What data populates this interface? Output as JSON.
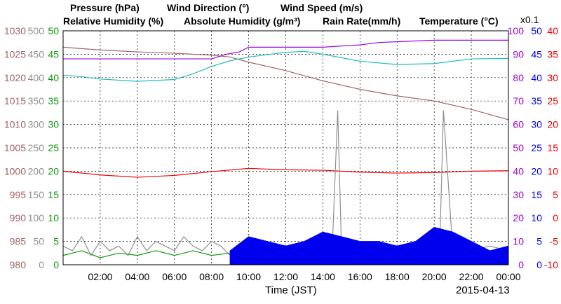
{
  "chart_data": {
    "type": "line",
    "date": "2015-04-13",
    "xlabel": "Time (JST)",
    "x_ticks": [
      "02:00",
      "04:00",
      "06:00",
      "08:00",
      "10:00",
      "12:00",
      "14:00",
      "16:00",
      "18:00",
      "20:00",
      "22:00",
      "00:00"
    ],
    "grid": true,
    "legend": [
      {
        "name": "Pressure (hPa)",
        "color": "#a06464"
      },
      {
        "name": "Wind Direction (°)",
        "color": "#909090"
      },
      {
        "name": "Wind Speed (m/s)",
        "color": "#119911"
      },
      {
        "name": "Relative Humidity (%)",
        "color": "#9900dd"
      },
      {
        "name": "Absolute Humidity (g/m³)",
        "color": "#22bbbb"
      },
      {
        "name": "Rain Rate(mm/h)",
        "color": "#0000ee"
      },
      {
        "name": "Temperature (°C)",
        "color": "#ee0000"
      }
    ],
    "rain_scale_note": "x0.1",
    "axes": {
      "pressure": {
        "ticks": [
          "1030",
          "1025",
          "1020",
          "1015",
          "1010",
          "1005",
          "1000",
          "995",
          "990",
          "985",
          "980"
        ],
        "color": "#a06464",
        "ylim": [
          980,
          1030
        ]
      },
      "wind_direction": {
        "ticks": [
          "500",
          "450",
          "400",
          "350",
          "300",
          "250",
          "200",
          "150",
          "100",
          "50",
          "0"
        ],
        "color": "#909090",
        "ylim": [
          0,
          500
        ]
      },
      "wind_speed": {
        "ticks": [
          "50",
          "45",
          "40",
          "35",
          "30",
          "25",
          "20",
          "15",
          "10",
          "5",
          "0"
        ],
        "color": "#119911",
        "ylim": [
          0,
          50
        ]
      },
      "relative_humidity": {
        "ticks": [
          "100",
          "90",
          "80",
          "70",
          "60",
          "50",
          "40",
          "30",
          "20",
          "10",
          "0"
        ],
        "color": "#9900dd",
        "ylim": [
          0,
          100
        ]
      },
      "rain_rate": {
        "ticks": [
          "50",
          "45",
          "40",
          "35",
          "30",
          "25",
          "20",
          "15",
          "10",
          "5",
          "0"
        ],
        "color": "#0000ee",
        "ylim": [
          0,
          50
        ]
      },
      "temperature": {
        "ticks": [
          "40",
          "35",
          "30",
          "25",
          "20",
          "15",
          "10",
          "5",
          "0",
          "-5",
          "-10"
        ],
        "color": "#ee0000",
        "ylim": [
          -10,
          40
        ]
      }
    },
    "series": [
      {
        "name": "Pressure (hPa)",
        "axis": "pressure",
        "x": [
          0,
          2,
          4,
          6,
          8,
          9,
          10,
          12,
          14,
          16,
          18,
          20,
          22,
          24
        ],
        "values": [
          1026.5,
          1025.9,
          1025.5,
          1025.2,
          1024.8,
          1024.4,
          1023.3,
          1021.5,
          1019.3,
          1017.5,
          1016.1,
          1015.0,
          1013.2,
          1011.0
        ]
      },
      {
        "name": "Relative Humidity (%)",
        "axis": "relative_humidity",
        "x": [
          0,
          4,
          8,
          8.8,
          9.5,
          10,
          14,
          16,
          17,
          20,
          24
        ],
        "values": [
          88,
          88,
          88,
          90,
          91,
          93,
          93,
          94,
          95,
          96,
          96
        ]
      },
      {
        "name": "Absolute Humidity (g/m³)",
        "axis": "wind_speed",
        "x": [
          0,
          1,
          2,
          4,
          6,
          7,
          8,
          9,
          10,
          12,
          13,
          14,
          16,
          18,
          20,
          22,
          24
        ],
        "values": [
          40.5,
          40.2,
          39.7,
          39.2,
          39.6,
          40.8,
          42.4,
          43.6,
          44.4,
          45.4,
          45.6,
          45.0,
          43.5,
          42.8,
          43.0,
          44.0,
          44.1
        ]
      },
      {
        "name": "Temperature (°C)",
        "axis": "temperature",
        "x": [
          0,
          2,
          4,
          6,
          8,
          10,
          12,
          14,
          16,
          18,
          20,
          22,
          24
        ],
        "values": [
          10.0,
          9.2,
          8.7,
          9.1,
          9.9,
          10.6,
          10.3,
          10.2,
          9.8,
          9.6,
          9.7,
          10.0,
          10.1
        ]
      },
      {
        "name": "Wind Direction (°)",
        "axis": "wind_direction",
        "x": [
          0,
          0.5,
          1,
          1.5,
          2,
          2.5,
          3,
          3.5,
          4,
          4.5,
          5,
          5.5,
          6,
          6.5,
          7,
          7.5,
          8,
          8.5,
          9,
          9.5,
          10,
          11,
          12,
          13,
          14,
          14.5,
          14.8,
          15,
          16,
          17,
          18,
          19,
          20,
          20.3,
          20.5,
          21,
          22,
          23,
          24
        ],
        "values": [
          40,
          30,
          60,
          20,
          50,
          30,
          40,
          20,
          60,
          30,
          50,
          40,
          30,
          60,
          40,
          30,
          50,
          40,
          20,
          30,
          40,
          30,
          30,
          30,
          40,
          30,
          330,
          40,
          30,
          30,
          30,
          40,
          30,
          40,
          330,
          30,
          30,
          40,
          30
        ]
      },
      {
        "name": "Wind Speed (m/s)",
        "axis": "wind_speed",
        "x": [
          0,
          1,
          2,
          3,
          4,
          5,
          6,
          7,
          8,
          9,
          10,
          11,
          12,
          13,
          14,
          14.5,
          15,
          16,
          17,
          18,
          19,
          20,
          21,
          22,
          23,
          24
        ],
        "values": [
          2,
          3,
          1.5,
          2.5,
          2,
          3,
          2,
          3,
          2,
          2.5,
          3,
          2.5,
          3.5,
          3,
          4.5,
          5,
          4,
          4,
          3.5,
          3.5,
          3,
          3.5,
          3,
          2.5,
          2,
          2.5
        ]
      },
      {
        "name": "Rain Rate(mm/h)",
        "axis": "rain_rate",
        "x": [
          9,
          10,
          11,
          12,
          13,
          14,
          15,
          16,
          17,
          18,
          19,
          20,
          21,
          22,
          23,
          24
        ],
        "values": [
          3,
          6,
          5,
          4,
          5,
          7,
          6,
          5,
          5,
          4,
          5,
          8,
          7,
          5,
          3,
          4
        ]
      }
    ]
  }
}
